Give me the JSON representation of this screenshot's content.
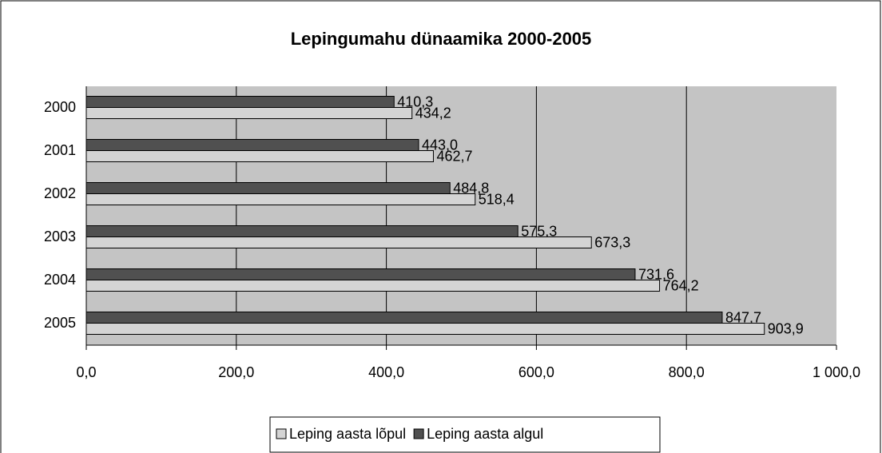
{
  "chart_data": {
    "type": "barh",
    "title": "Lepingumahu dünaamika 2000-2005",
    "categories": [
      "2000",
      "2001",
      "2002",
      "2003",
      "2004",
      "2005"
    ],
    "series": [
      {
        "name": "Leping aasta lõpul",
        "color": "#d4d4d4",
        "values": [
          434.2,
          462.7,
          518.4,
          673.3,
          764.2,
          903.9
        ],
        "value_labels": [
          "434,2",
          "462,7",
          "518,4",
          "673,3",
          "764,2",
          "903,9"
        ]
      },
      {
        "name": "Leping aasta algul",
        "color": "#505050",
        "values": [
          410.3,
          443.0,
          484.8,
          575.3,
          731.6,
          847.7
        ],
        "value_labels": [
          "410,3",
          "443,0",
          "484,8",
          "575,3",
          "731,6",
          "847,7"
        ]
      }
    ],
    "xlim": [
      0,
      1000
    ],
    "xticks": [
      {
        "value": 0,
        "label": "0,0"
      },
      {
        "value": 200,
        "label": "200,0"
      },
      {
        "value": 400,
        "label": "400,0"
      },
      {
        "value": 600,
        "label": "600,0"
      },
      {
        "value": 800,
        "label": "800,0"
      },
      {
        "value": 1000,
        "label": "1 000,0"
      }
    ],
    "grid": true,
    "legend": "bottom"
  }
}
